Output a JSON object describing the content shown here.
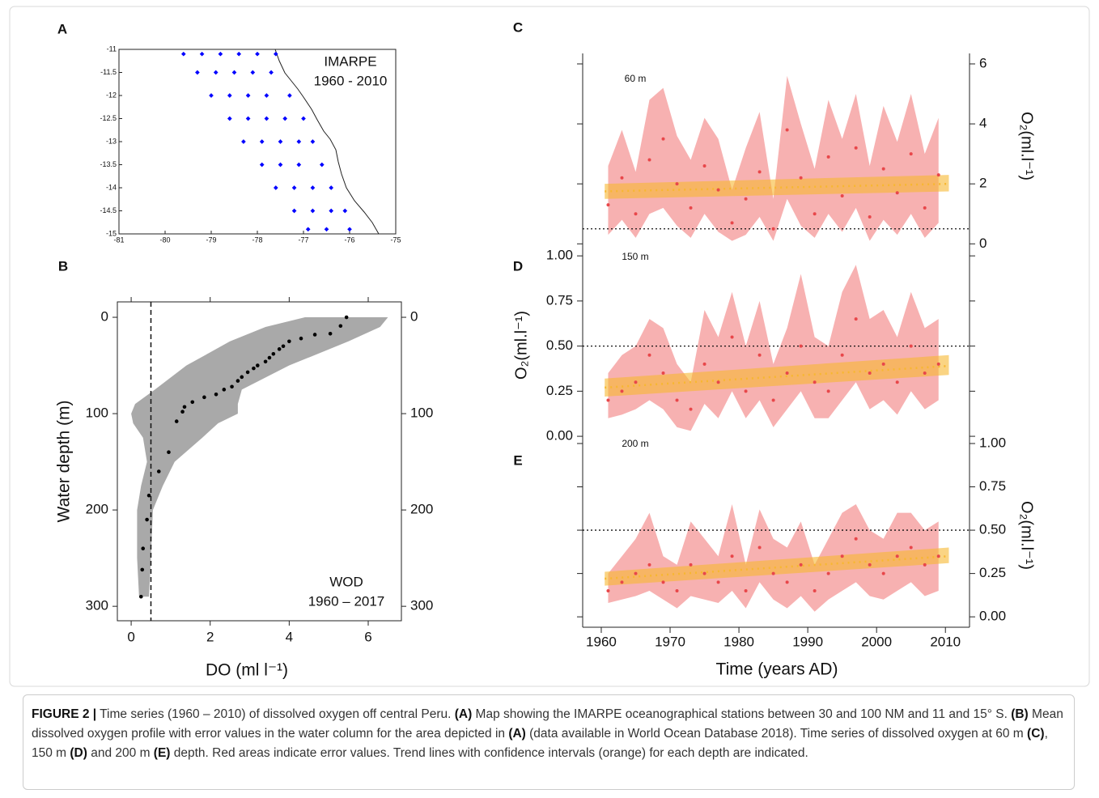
{
  "chart_data": [
    {
      "type": "scatter",
      "label": "A",
      "annotation": [
        "IMARPE",
        "1960 - 2010"
      ],
      "color": "#0000ff",
      "x": [
        -79.6,
        -79.2,
        -78.8,
        -78.4,
        -78.0,
        -77.6,
        -79.3,
        -78.9,
        -78.5,
        -78.1,
        -77.7,
        -79.0,
        -78.6,
        -78.2,
        -77.8,
        -77.3,
        -78.6,
        -78.2,
        -77.8,
        -77.4,
        -77.0,
        -78.3,
        -77.9,
        -77.5,
        -77.1,
        -76.8,
        -77.9,
        -77.5,
        -77.1,
        -76.6,
        -77.6,
        -77.2,
        -76.8,
        -76.4,
        -77.2,
        -76.8,
        -76.4,
        -76.1,
        -76.9,
        -76.5,
        -76.0
      ],
      "y": [
        -11.1,
        -11.1,
        -11.1,
        -11.1,
        -11.1,
        -11.1,
        -11.5,
        -11.5,
        -11.5,
        -11.5,
        -11.5,
        -12,
        -12,
        -12,
        -12,
        -12,
        -12.5,
        -12.5,
        -12.5,
        -12.5,
        -12.5,
        -13,
        -13,
        -13,
        -13,
        -13,
        -13.5,
        -13.5,
        -13.5,
        -13.5,
        -14,
        -14,
        -14,
        -14,
        -14.5,
        -14.5,
        -14.5,
        -14.5,
        -14.9,
        -14.9,
        -14.9
      ],
      "xlim": [
        -81,
        -75
      ],
      "xticks": [
        -81,
        -80,
        -79,
        -78,
        -77,
        -76,
        -75
      ],
      "ylim": [
        -15,
        -11
      ],
      "yticks": [
        -15,
        -14.5,
        -14,
        -13.5,
        -13,
        -12.5,
        -12,
        -11.5,
        -11
      ]
    },
    {
      "type": "profile",
      "label": "B",
      "xlabel": "DO (ml l⁻¹)",
      "ylabel": "Water depth (m)",
      "annotation": [
        "WOD",
        "1960 – 2017"
      ],
      "depth": [
        0,
        9,
        17,
        18,
        22,
        25,
        30,
        33,
        38,
        42,
        46,
        50,
        53,
        57,
        62,
        66,
        72,
        75,
        80,
        83,
        88,
        93,
        98,
        108,
        140,
        160,
        185,
        210,
        240,
        262,
        290
      ],
      "values": [
        5.45,
        5.3,
        5.04,
        4.65,
        4.3,
        4.0,
        3.85,
        3.75,
        3.6,
        3.5,
        3.4,
        3.2,
        3.1,
        2.95,
        2.8,
        2.7,
        2.55,
        2.35,
        2.15,
        1.85,
        1.55,
        1.35,
        1.3,
        1.15,
        0.95,
        0.7,
        0.45,
        0.4,
        0.3,
        0.28,
        0.25
      ],
      "color": "#000000",
      "envelope": {
        "depth": [
          0,
          10,
          25,
          50,
          75,
          90,
          100,
          110,
          125,
          150,
          175,
          200,
          250,
          290
        ],
        "min": [
          4.4,
          3.4,
          2.5,
          1.4,
          0.6,
          0.1,
          0.0,
          0.05,
          0.3,
          0.4,
          0.25,
          0.15,
          0.15,
          0.2
        ],
        "max": [
          6.5,
          6.3,
          5.5,
          4.0,
          2.8,
          2.7,
          2.7,
          2.2,
          1.8,
          1.1,
          0.8,
          0.55,
          0.5,
          0.45
        ],
        "color": "#a9a9a9"
      },
      "threshold": 0.5,
      "xlim": [
        -0.35,
        6.84
      ],
      "xticks": [
        0,
        2,
        4,
        6
      ],
      "ylim": [
        -16,
        315
      ],
      "yticks": [
        0,
        100,
        200,
        300
      ],
      "y_inverted": true
    },
    {
      "type": "line",
      "label": "C",
      "annotation": "60 m",
      "ylabel": "O₂(ml.l⁻¹)",
      "y_axis_side": "right",
      "x": [
        1961,
        1963,
        1965,
        1967,
        1969,
        1971,
        1973,
        1975,
        1977,
        1979,
        1981,
        1983,
        1985,
        1987,
        1989,
        1991,
        1993,
        1995,
        1997,
        1999,
        2001,
        2003,
        2005,
        2007,
        2009
      ],
      "values": [
        1.3,
        2.2,
        1.0,
        2.8,
        3.5,
        2.0,
        1.2,
        2.6,
        1.8,
        0.7,
        1.5,
        2.4,
        0.5,
        3.8,
        2.2,
        1.0,
        2.9,
        1.6,
        3.2,
        0.9,
        2.5,
        1.7,
        3.0,
        1.2,
        2.3
      ],
      "lower": [
        0.3,
        0.8,
        0.2,
        1.0,
        1.2,
        0.6,
        0.2,
        1.0,
        0.4,
        0.1,
        0.3,
        0.9,
        0.1,
        1.5,
        0.6,
        0.2,
        1.0,
        0.4,
        1.2,
        0.1,
        0.8,
        0.3,
        1.0,
        0.2,
        0.7
      ],
      "upper": [
        2.6,
        3.8,
        2.4,
        4.8,
        5.2,
        3.6,
        2.8,
        4.2,
        3.5,
        1.8,
        3.2,
        4.4,
        1.5,
        5.6,
        4.0,
        2.5,
        4.8,
        3.5,
        5.0,
        2.6,
        4.6,
        3.4,
        5.0,
        3.0,
        4.2
      ],
      "color": "#e8474a",
      "band_color": "#f6a3a3",
      "trend": {
        "x": [
          1960.5,
          2010.5
        ],
        "values": [
          1.75,
          2.0
        ],
        "lower": [
          1.5,
          1.75
        ],
        "upper": [
          2.0,
          2.3
        ],
        "color": "#f7b731"
      },
      "threshold": 0.5,
      "xlim": [
        1957.3,
        2013.5
      ],
      "ylim": [
        -0.1,
        6.35
      ],
      "yticks": [
        0,
        2,
        4,
        6
      ]
    },
    {
      "type": "line",
      "label": "D",
      "annotation": "150 m",
      "ylabel": "O₂(ml.l⁻¹)",
      "y_axis_side": "left",
      "x": [
        1961,
        1963,
        1965,
        1967,
        1969,
        1971,
        1973,
        1975,
        1977,
        1979,
        1981,
        1983,
        1985,
        1987,
        1989,
        1991,
        1993,
        1995,
        1997,
        1999,
        2001,
        2003,
        2005,
        2007,
        2009
      ],
      "values": [
        0.2,
        0.25,
        0.3,
        0.45,
        0.35,
        0.2,
        0.15,
        0.4,
        0.3,
        0.55,
        0.25,
        0.45,
        0.2,
        0.35,
        0.5,
        0.3,
        0.25,
        0.45,
        0.65,
        0.35,
        0.4,
        0.3,
        0.5,
        0.35,
        0.4
      ],
      "lower": [
        0.1,
        0.12,
        0.15,
        0.2,
        0.15,
        0.05,
        0.03,
        0.18,
        0.1,
        0.25,
        0.1,
        0.2,
        0.05,
        0.15,
        0.25,
        0.1,
        0.1,
        0.2,
        0.3,
        0.15,
        0.2,
        0.12,
        0.25,
        0.15,
        0.2
      ],
      "upper": [
        0.35,
        0.45,
        0.5,
        0.65,
        0.6,
        0.4,
        0.3,
        0.7,
        0.55,
        0.8,
        0.5,
        0.75,
        0.4,
        0.6,
        0.9,
        0.55,
        0.5,
        0.8,
        0.95,
        0.65,
        0.7,
        0.55,
        0.8,
        0.6,
        0.65
      ],
      "color": "#e8474a",
      "band_color": "#f6a3a3",
      "trend": {
        "x": [
          1960.5,
          2010.5
        ],
        "values": [
          0.27,
          0.39
        ],
        "lower": [
          0.22,
          0.34
        ],
        "upper": [
          0.32,
          0.45
        ],
        "color": "#f7b731"
      },
      "threshold": 0.5,
      "xlim": [
        1957.3,
        2013.5
      ],
      "ylim": [
        -0.04,
        1.05
      ],
      "yticks": [
        {
          "value": 0,
          "label": "0.00"
        },
        {
          "value": 0.25,
          "label": "0.25"
        },
        {
          "value": 0.5,
          "label": "0.50"
        },
        {
          "value": 0.75,
          "label": "0.75"
        },
        {
          "value": 1,
          "label": "1.00"
        }
      ]
    },
    {
      "type": "line",
      "label": "E",
      "annotation": "200 m",
      "ylabel": "O₂(ml.l⁻¹)",
      "y_axis_side": "right",
      "xlabel": "Time (years AD)",
      "x": [
        1961,
        1963,
        1965,
        1967,
        1969,
        1971,
        1973,
        1975,
        1977,
        1979,
        1981,
        1983,
        1985,
        1987,
        1989,
        1991,
        1993,
        1995,
        1997,
        1999,
        2001,
        2003,
        2005,
        2007,
        2009
      ],
      "values": [
        0.15,
        0.2,
        0.25,
        0.3,
        0.2,
        0.15,
        0.3,
        0.25,
        0.2,
        0.35,
        0.15,
        0.4,
        0.25,
        0.2,
        0.3,
        0.15,
        0.25,
        0.35,
        0.45,
        0.3,
        0.25,
        0.35,
        0.4,
        0.3,
        0.35
      ],
      "lower": [
        0.08,
        0.1,
        0.12,
        0.15,
        0.1,
        0.05,
        0.12,
        0.1,
        0.08,
        0.15,
        0.05,
        0.2,
        0.1,
        0.05,
        0.12,
        0.03,
        0.1,
        0.15,
        0.2,
        0.12,
        0.1,
        0.15,
        0.2,
        0.12,
        0.15
      ],
      "upper": [
        0.25,
        0.35,
        0.45,
        0.6,
        0.35,
        0.3,
        0.55,
        0.45,
        0.35,
        0.65,
        0.3,
        0.62,
        0.45,
        0.4,
        0.55,
        0.3,
        0.45,
        0.6,
        0.65,
        0.5,
        0.45,
        0.6,
        0.6,
        0.5,
        0.55
      ],
      "color": "#e8474a",
      "band_color": "#f6a3a3",
      "trend": {
        "x": [
          1960.5,
          2010.5
        ],
        "values": [
          0.22,
          0.35
        ],
        "lower": [
          0.18,
          0.31
        ],
        "upper": [
          0.26,
          0.4
        ],
        "color": "#f7b731"
      },
      "threshold": 0.5,
      "xlim": [
        1957.3,
        2013.5
      ],
      "xticks": [
        1960,
        1970,
        1980,
        1990,
        2000,
        2010
      ],
      "ylim": [
        -0.06,
        1.0
      ],
      "yticks": [
        {
          "value": 0,
          "label": "0.00"
        },
        {
          "value": 0.25,
          "label": "0.25"
        },
        {
          "value": 0.5,
          "label": "0.50"
        },
        {
          "value": 0.75,
          "label": "0.75"
        },
        {
          "value": 1,
          "label": "1.00"
        }
      ]
    }
  ],
  "caption": {
    "segments": [
      {
        "text": "FIGURE 2 |",
        "bold": true
      },
      {
        "text": " Time series (1960 – 2010) of dissolved oxygen off central Peru. ",
        "bold": false
      },
      {
        "text": "(A)",
        "bold": true
      },
      {
        "text": " Map showing the IMARPE oceanographical stations between 30 and 100 NM and 11 and 15° S. ",
        "bold": false
      },
      {
        "text": "(B)",
        "bold": true
      },
      {
        "text": " Mean dissolved oxygen profile with error values in the water column for the area depicted in ",
        "bold": false
      },
      {
        "text": "(A)",
        "bold": true
      },
      {
        "text": " (data available in World Ocean Database 2018). Time series of dissolved oxygen at 60 m ",
        "bold": false
      },
      {
        "text": "(C)",
        "bold": true
      },
      {
        "text": ", 150 m ",
        "bold": false
      },
      {
        "text": "(D)",
        "bold": true
      },
      {
        "text": " and 200 m ",
        "bold": false
      },
      {
        "text": "(E)",
        "bold": true
      },
      {
        "text": " depth. Red areas indicate error values. Trend lines with confidence intervals (orange) for each depth are indicated.",
        "bold": false
      }
    ]
  }
}
